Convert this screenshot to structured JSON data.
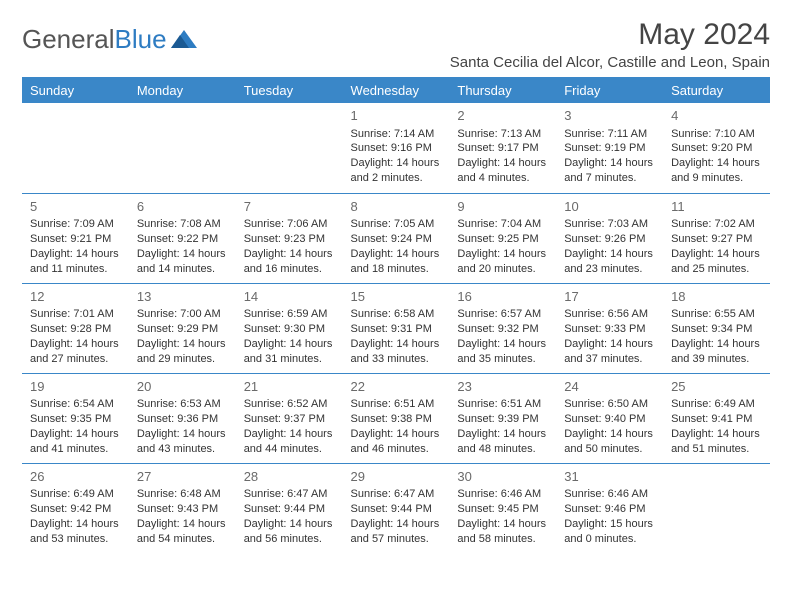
{
  "brand": {
    "part1": "General",
    "part2": "Blue"
  },
  "title": "May 2024",
  "location": "Santa Cecilia del Alcor, Castille and Leon, Spain",
  "colors": {
    "header_bg": "#3a87c8",
    "separator": "#3a87c8",
    "brand_gray": "#555555",
    "brand_blue": "#2e7cc2",
    "text": "#333333",
    "bg": "#ffffff"
  },
  "weekdays": [
    "Sunday",
    "Monday",
    "Tuesday",
    "Wednesday",
    "Thursday",
    "Friday",
    "Saturday"
  ],
  "weeks": [
    [
      {
        "day": "",
        "sunrise": "",
        "sunset": "",
        "daylight": ""
      },
      {
        "day": "",
        "sunrise": "",
        "sunset": "",
        "daylight": ""
      },
      {
        "day": "",
        "sunrise": "",
        "sunset": "",
        "daylight": ""
      },
      {
        "day": "1",
        "sunrise": "Sunrise: 7:14 AM",
        "sunset": "Sunset: 9:16 PM",
        "daylight": "Daylight: 14 hours and 2 minutes."
      },
      {
        "day": "2",
        "sunrise": "Sunrise: 7:13 AM",
        "sunset": "Sunset: 9:17 PM",
        "daylight": "Daylight: 14 hours and 4 minutes."
      },
      {
        "day": "3",
        "sunrise": "Sunrise: 7:11 AM",
        "sunset": "Sunset: 9:19 PM",
        "daylight": "Daylight: 14 hours and 7 minutes."
      },
      {
        "day": "4",
        "sunrise": "Sunrise: 7:10 AM",
        "sunset": "Sunset: 9:20 PM",
        "daylight": "Daylight: 14 hours and 9 minutes."
      }
    ],
    [
      {
        "day": "5",
        "sunrise": "Sunrise: 7:09 AM",
        "sunset": "Sunset: 9:21 PM",
        "daylight": "Daylight: 14 hours and 11 minutes."
      },
      {
        "day": "6",
        "sunrise": "Sunrise: 7:08 AM",
        "sunset": "Sunset: 9:22 PM",
        "daylight": "Daylight: 14 hours and 14 minutes."
      },
      {
        "day": "7",
        "sunrise": "Sunrise: 7:06 AM",
        "sunset": "Sunset: 9:23 PM",
        "daylight": "Daylight: 14 hours and 16 minutes."
      },
      {
        "day": "8",
        "sunrise": "Sunrise: 7:05 AM",
        "sunset": "Sunset: 9:24 PM",
        "daylight": "Daylight: 14 hours and 18 minutes."
      },
      {
        "day": "9",
        "sunrise": "Sunrise: 7:04 AM",
        "sunset": "Sunset: 9:25 PM",
        "daylight": "Daylight: 14 hours and 20 minutes."
      },
      {
        "day": "10",
        "sunrise": "Sunrise: 7:03 AM",
        "sunset": "Sunset: 9:26 PM",
        "daylight": "Daylight: 14 hours and 23 minutes."
      },
      {
        "day": "11",
        "sunrise": "Sunrise: 7:02 AM",
        "sunset": "Sunset: 9:27 PM",
        "daylight": "Daylight: 14 hours and 25 minutes."
      }
    ],
    [
      {
        "day": "12",
        "sunrise": "Sunrise: 7:01 AM",
        "sunset": "Sunset: 9:28 PM",
        "daylight": "Daylight: 14 hours and 27 minutes."
      },
      {
        "day": "13",
        "sunrise": "Sunrise: 7:00 AM",
        "sunset": "Sunset: 9:29 PM",
        "daylight": "Daylight: 14 hours and 29 minutes."
      },
      {
        "day": "14",
        "sunrise": "Sunrise: 6:59 AM",
        "sunset": "Sunset: 9:30 PM",
        "daylight": "Daylight: 14 hours and 31 minutes."
      },
      {
        "day": "15",
        "sunrise": "Sunrise: 6:58 AM",
        "sunset": "Sunset: 9:31 PM",
        "daylight": "Daylight: 14 hours and 33 minutes."
      },
      {
        "day": "16",
        "sunrise": "Sunrise: 6:57 AM",
        "sunset": "Sunset: 9:32 PM",
        "daylight": "Daylight: 14 hours and 35 minutes."
      },
      {
        "day": "17",
        "sunrise": "Sunrise: 6:56 AM",
        "sunset": "Sunset: 9:33 PM",
        "daylight": "Daylight: 14 hours and 37 minutes."
      },
      {
        "day": "18",
        "sunrise": "Sunrise: 6:55 AM",
        "sunset": "Sunset: 9:34 PM",
        "daylight": "Daylight: 14 hours and 39 minutes."
      }
    ],
    [
      {
        "day": "19",
        "sunrise": "Sunrise: 6:54 AM",
        "sunset": "Sunset: 9:35 PM",
        "daylight": "Daylight: 14 hours and 41 minutes."
      },
      {
        "day": "20",
        "sunrise": "Sunrise: 6:53 AM",
        "sunset": "Sunset: 9:36 PM",
        "daylight": "Daylight: 14 hours and 43 minutes."
      },
      {
        "day": "21",
        "sunrise": "Sunrise: 6:52 AM",
        "sunset": "Sunset: 9:37 PM",
        "daylight": "Daylight: 14 hours and 44 minutes."
      },
      {
        "day": "22",
        "sunrise": "Sunrise: 6:51 AM",
        "sunset": "Sunset: 9:38 PM",
        "daylight": "Daylight: 14 hours and 46 minutes."
      },
      {
        "day": "23",
        "sunrise": "Sunrise: 6:51 AM",
        "sunset": "Sunset: 9:39 PM",
        "daylight": "Daylight: 14 hours and 48 minutes."
      },
      {
        "day": "24",
        "sunrise": "Sunrise: 6:50 AM",
        "sunset": "Sunset: 9:40 PM",
        "daylight": "Daylight: 14 hours and 50 minutes."
      },
      {
        "day": "25",
        "sunrise": "Sunrise: 6:49 AM",
        "sunset": "Sunset: 9:41 PM",
        "daylight": "Daylight: 14 hours and 51 minutes."
      }
    ],
    [
      {
        "day": "26",
        "sunrise": "Sunrise: 6:49 AM",
        "sunset": "Sunset: 9:42 PM",
        "daylight": "Daylight: 14 hours and 53 minutes."
      },
      {
        "day": "27",
        "sunrise": "Sunrise: 6:48 AM",
        "sunset": "Sunset: 9:43 PM",
        "daylight": "Daylight: 14 hours and 54 minutes."
      },
      {
        "day": "28",
        "sunrise": "Sunrise: 6:47 AM",
        "sunset": "Sunset: 9:44 PM",
        "daylight": "Daylight: 14 hours and 56 minutes."
      },
      {
        "day": "29",
        "sunrise": "Sunrise: 6:47 AM",
        "sunset": "Sunset: 9:44 PM",
        "daylight": "Daylight: 14 hours and 57 minutes."
      },
      {
        "day": "30",
        "sunrise": "Sunrise: 6:46 AM",
        "sunset": "Sunset: 9:45 PM",
        "daylight": "Daylight: 14 hours and 58 minutes."
      },
      {
        "day": "31",
        "sunrise": "Sunrise: 6:46 AM",
        "sunset": "Sunset: 9:46 PM",
        "daylight": "Daylight: 15 hours and 0 minutes."
      },
      {
        "day": "",
        "sunrise": "",
        "sunset": "",
        "daylight": ""
      }
    ]
  ]
}
